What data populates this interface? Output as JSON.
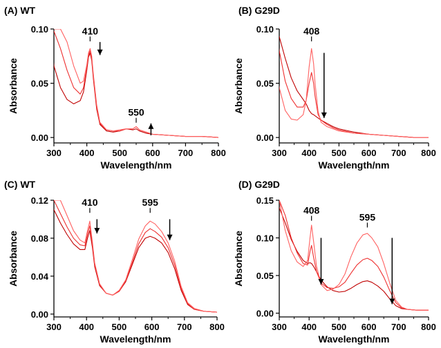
{
  "chart_data": [
    {
      "type": "line",
      "panel_label": "(A) WT",
      "xlabel": "Wavelength/nm",
      "ylabel": "Absorbance",
      "xlim": [
        300,
        800
      ],
      "ylim": [
        -0.005,
        0.1
      ],
      "x_ticks": [
        300,
        400,
        500,
        600,
        700,
        800
      ],
      "x_tick_labels": [
        "300",
        "400",
        "500",
        "600",
        "700",
        "800"
      ],
      "y_ticks": [
        0.0,
        0.05,
        0.1
      ],
      "y_tick_labels": [
        "0.00",
        "0.05",
        "0.10"
      ],
      "x": [
        290,
        300,
        320,
        340,
        360,
        380,
        390,
        400,
        405,
        410,
        415,
        420,
        430,
        440,
        460,
        480,
        500,
        520,
        540,
        550,
        560,
        580,
        600,
        650,
        700,
        750,
        800
      ],
      "series": [
        {
          "values": [
            0.095,
            0.066,
            0.046,
            0.035,
            0.031,
            0.034,
            0.042,
            0.062,
            0.074,
            0.078,
            0.071,
            0.054,
            0.026,
            0.012,
            0.006,
            0.005,
            0.006,
            0.008,
            0.007,
            0.008,
            0.006,
            0.004,
            0.003,
            0.002,
            0.001,
            0.001,
            0.0
          ]
        },
        {
          "values": [
            0.1,
            0.098,
            0.082,
            0.062,
            0.046,
            0.04,
            0.046,
            0.064,
            0.076,
            0.08,
            0.073,
            0.056,
            0.028,
            0.013,
            0.007,
            0.006,
            0.006,
            0.008,
            0.008,
            0.01,
            0.007,
            0.005,
            0.003,
            0.002,
            0.001,
            0.001,
            0.0
          ]
        },
        {
          "values": [
            0.1,
            0.1,
            0.1,
            0.088,
            0.066,
            0.05,
            0.052,
            0.067,
            0.078,
            0.082,
            0.075,
            0.058,
            0.03,
            0.014,
            0.007,
            0.006,
            0.007,
            0.008,
            0.008,
            0.01,
            0.007,
            0.005,
            0.003,
            0.002,
            0.001,
            0.001,
            0.0
          ]
        }
      ],
      "series_colors": [
        "#c00000",
        "#ee3030",
        "#ff6060"
      ],
      "annotations": [
        {
          "text": "410",
          "x": 410,
          "y": 0.095
        },
        {
          "text": "550",
          "x": 550,
          "y": 0.02
        }
      ],
      "arrows": [
        {
          "x": 440,
          "direction": "down",
          "y_from": 0.088,
          "y_to": 0.076
        },
        {
          "x": 595,
          "direction": "up",
          "y_from": 0.002,
          "y_to": 0.013
        }
      ]
    },
    {
      "type": "line",
      "panel_label": "(B) G29D",
      "xlabel": "Wavelength/nm",
      "ylabel": "Absorbance",
      "xlim": [
        300,
        800
      ],
      "ylim": [
        -0.005,
        0.1
      ],
      "x_ticks": [
        300,
        400,
        500,
        600,
        700,
        800
      ],
      "x_tick_labels": [
        "300",
        "400",
        "500",
        "600",
        "700",
        "800"
      ],
      "y_ticks": [
        0.0,
        0.05,
        0.1
      ],
      "y_tick_labels": [
        "0.00",
        "0.05",
        "0.10"
      ],
      "x": [
        290,
        300,
        320,
        340,
        360,
        380,
        390,
        400,
        408,
        415,
        420,
        430,
        440,
        460,
        480,
        500,
        550,
        600,
        650,
        700,
        750,
        800
      ],
      "series": [
        {
          "values": [
            0.1,
            0.093,
            0.073,
            0.055,
            0.043,
            0.035,
            0.031,
            0.025,
            0.022,
            0.021,
            0.02,
            0.018,
            0.016,
            0.013,
            0.01,
            0.008,
            0.005,
            0.003,
            0.002,
            0.001,
            0.0,
            0.0
          ]
        },
        {
          "values": [
            0.1,
            0.08,
            0.052,
            0.036,
            0.028,
            0.028,
            0.034,
            0.05,
            0.06,
            0.05,
            0.038,
            0.021,
            0.016,
            0.012,
            0.009,
            0.007,
            0.004,
            0.003,
            0.002,
            0.001,
            0.0,
            0.0
          ]
        },
        {
          "values": [
            0.065,
            0.046,
            0.025,
            0.017,
            0.016,
            0.021,
            0.034,
            0.065,
            0.082,
            0.068,
            0.05,
            0.024,
            0.014,
            0.01,
            0.008,
            0.006,
            0.004,
            0.003,
            0.002,
            0.001,
            0.0,
            0.0
          ]
        }
      ],
      "series_colors": [
        "#c00000",
        "#ee3030",
        "#ff6060"
      ],
      "annotations": [
        {
          "text": "408",
          "x": 408,
          "y": 0.095
        }
      ],
      "arrows": [
        {
          "x": 450,
          "direction": "down",
          "y_from": 0.078,
          "y_to": 0.018
        }
      ]
    },
    {
      "type": "line",
      "panel_label": "(C) WT",
      "xlabel": "Wavelength/nm",
      "ylabel": "Absorbance",
      "xlim": [
        300,
        800
      ],
      "ylim": [
        -0.003,
        0.12
      ],
      "x_ticks": [
        300,
        400,
        500,
        600,
        700,
        800
      ],
      "x_tick_labels": [
        "300",
        "400",
        "500",
        "600",
        "700",
        "800"
      ],
      "y_ticks": [
        0.0,
        0.04,
        0.08,
        0.12
      ],
      "y_tick_labels": [
        "0.00",
        "0.04",
        "0.08",
        "0.12"
      ],
      "x": [
        290,
        300,
        320,
        340,
        360,
        380,
        395,
        403,
        410,
        418,
        425,
        440,
        460,
        480,
        500,
        520,
        540,
        560,
        580,
        595,
        610,
        630,
        650,
        670,
        690,
        710,
        730,
        760,
        800
      ],
      "series": [
        {
          "values": [
            0.12,
            0.11,
            0.096,
            0.084,
            0.074,
            0.068,
            0.068,
            0.08,
            0.088,
            0.07,
            0.05,
            0.03,
            0.022,
            0.02,
            0.024,
            0.034,
            0.052,
            0.07,
            0.08,
            0.082,
            0.08,
            0.075,
            0.065,
            0.048,
            0.025,
            0.01,
            0.005,
            0.003,
            0.002
          ]
        },
        {
          "values": [
            0.12,
            0.12,
            0.106,
            0.092,
            0.08,
            0.073,
            0.072,
            0.084,
            0.093,
            0.073,
            0.052,
            0.031,
            0.022,
            0.02,
            0.024,
            0.035,
            0.054,
            0.074,
            0.086,
            0.09,
            0.087,
            0.081,
            0.07,
            0.052,
            0.027,
            0.011,
            0.005,
            0.003,
            0.002
          ]
        },
        {
          "values": [
            0.12,
            0.12,
            0.12,
            0.104,
            0.088,
            0.078,
            0.075,
            0.088,
            0.098,
            0.076,
            0.054,
            0.032,
            0.022,
            0.02,
            0.025,
            0.036,
            0.057,
            0.079,
            0.093,
            0.098,
            0.095,
            0.087,
            0.075,
            0.056,
            0.029,
            0.012,
            0.006,
            0.003,
            0.002
          ]
        }
      ],
      "series_colors": [
        "#c00000",
        "#ee3030",
        "#ff6060"
      ],
      "annotations": [
        {
          "text": "410",
          "x": 410,
          "y": 0.114
        },
        {
          "text": "595",
          "x": 595,
          "y": 0.114
        }
      ],
      "arrows": [
        {
          "x": 432,
          "direction": "down",
          "y_from": 0.1,
          "y_to": 0.085
        },
        {
          "x": 655,
          "direction": "down",
          "y_from": 0.1,
          "y_to": 0.078
        }
      ]
    },
    {
      "type": "line",
      "panel_label": "(D) G29D",
      "xlabel": "Wavelength/nm",
      "ylabel": "Absorbance",
      "xlim": [
        300,
        800
      ],
      "ylim": [
        -0.005,
        0.15
      ],
      "x_ticks": [
        300,
        400,
        500,
        600,
        700,
        800
      ],
      "x_tick_labels": [
        "300",
        "400",
        "500",
        "600",
        "700",
        "800"
      ],
      "y_ticks": [
        0.0,
        0.05,
        0.1,
        0.15
      ],
      "y_tick_labels": [
        "0.00",
        "0.05",
        "0.10",
        "0.15"
      ],
      "x": [
        290,
        300,
        320,
        340,
        360,
        380,
        395,
        403,
        408,
        415,
        425,
        440,
        460,
        480,
        500,
        520,
        540,
        560,
        580,
        595,
        610,
        630,
        650,
        670,
        690,
        710,
        730,
        760,
        800
      ],
      "series": [
        {
          "values": [
            0.15,
            0.14,
            0.12,
            0.098,
            0.082,
            0.07,
            0.066,
            0.067,
            0.066,
            0.062,
            0.055,
            0.044,
            0.035,
            0.03,
            0.028,
            0.029,
            0.033,
            0.038,
            0.042,
            0.043,
            0.041,
            0.036,
            0.029,
            0.019,
            0.01,
            0.006,
            0.005,
            0.004,
            0.004
          ]
        },
        {
          "values": [
            0.15,
            0.15,
            0.13,
            0.1,
            0.08,
            0.066,
            0.064,
            0.082,
            0.09,
            0.074,
            0.055,
            0.04,
            0.034,
            0.033,
            0.035,
            0.041,
            0.053,
            0.064,
            0.071,
            0.073,
            0.07,
            0.062,
            0.048,
            0.03,
            0.014,
            0.007,
            0.005,
            0.004,
            0.004
          ]
        },
        {
          "values": [
            0.15,
            0.15,
            0.11,
            0.083,
            0.068,
            0.062,
            0.07,
            0.1,
            0.117,
            0.095,
            0.062,
            0.038,
            0.03,
            0.032,
            0.038,
            0.052,
            0.075,
            0.093,
            0.104,
            0.106,
            0.1,
            0.088,
            0.066,
            0.04,
            0.017,
            0.008,
            0.005,
            0.004,
            0.004
          ]
        }
      ],
      "series_colors": [
        "#c00000",
        "#ee3030",
        "#ff6060"
      ],
      "annotations": [
        {
          "text": "408",
          "x": 408,
          "y": 0.132
        },
        {
          "text": "595",
          "x": 595,
          "y": 0.123
        }
      ],
      "arrows": [
        {
          "x": 440,
          "direction": "down",
          "y_from": 0.1,
          "y_to": 0.038
        },
        {
          "x": 678,
          "direction": "down",
          "y_from": 0.1,
          "y_to": 0.012
        }
      ]
    }
  ]
}
